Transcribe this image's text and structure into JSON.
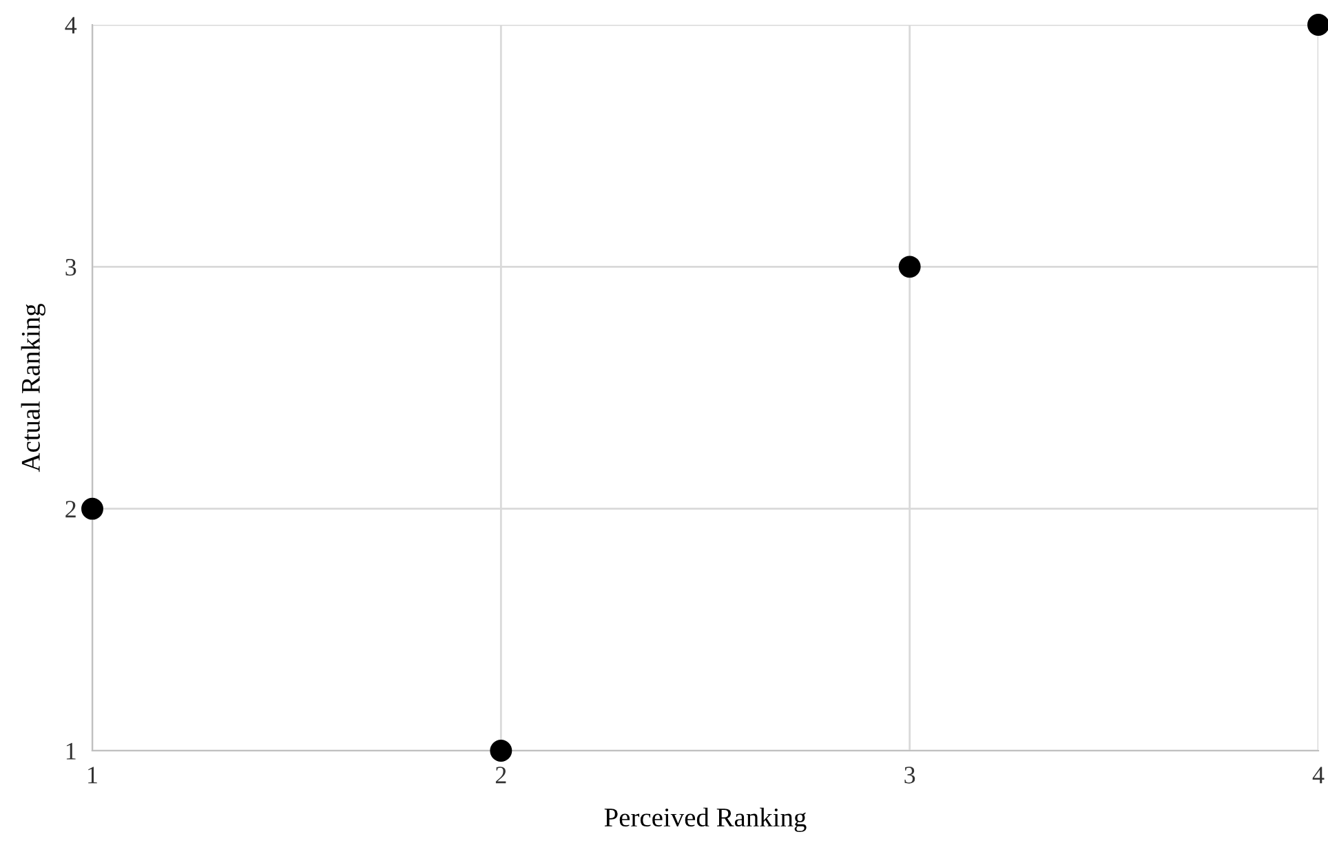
{
  "chart_data": {
    "type": "scatter",
    "xlabel": "Perceived Ranking",
    "ylabel": "Actual Ranking",
    "x": [
      1,
      2,
      3,
      4
    ],
    "series": [
      {
        "color": "#000000",
        "values": [
          2,
          1,
          3,
          4
        ]
      }
    ],
    "xlim": [
      1,
      4
    ],
    "ylim": [
      1,
      4
    ],
    "xticks": [
      1,
      2,
      3,
      4
    ],
    "yticks": [
      1,
      2,
      3,
      4
    ],
    "grid": true,
    "marker": "circle",
    "legend": false
  }
}
